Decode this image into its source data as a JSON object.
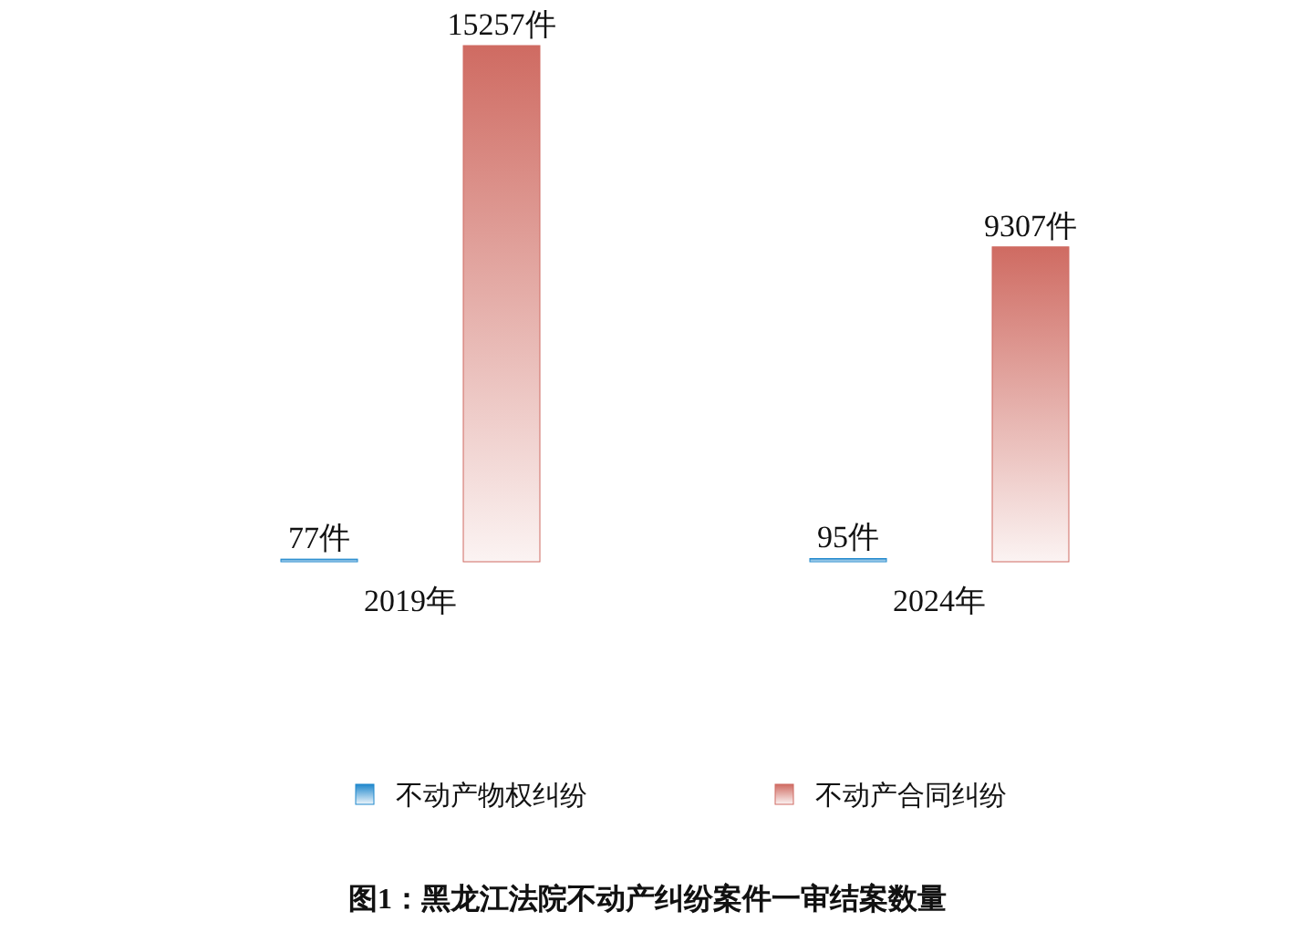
{
  "chart_data": {
    "type": "bar",
    "title": "图1：黑龙江法院不动产纠纷案件一审结案数量",
    "categories": [
      "2019年",
      "2024年"
    ],
    "series": [
      {
        "name": "不动产物权纠纷",
        "color": "#1f87cc",
        "values": [
          77,
          95
        ],
        "value_labels": [
          "77件",
          "95件"
        ]
      },
      {
        "name": "不动产合同纠纷",
        "color": "#cf6b62",
        "values": [
          15257,
          9307
        ],
        "value_labels": [
          "15257件",
          "9307件"
        ]
      }
    ],
    "legend": "bottom",
    "grid": false
  }
}
